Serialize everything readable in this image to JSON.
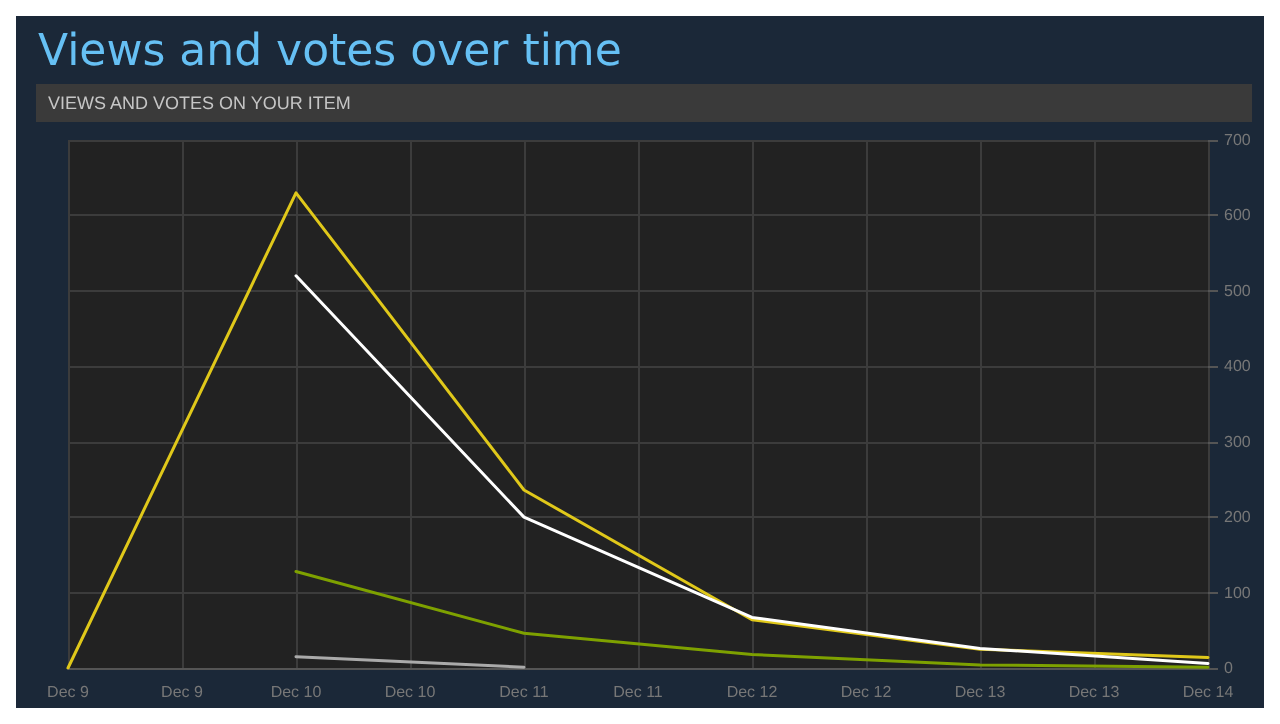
{
  "chart_data": {
    "type": "line",
    "title": "Views and votes over time",
    "subtitle": "VIEWS AND VOTES ON YOUR ITEM",
    "categories": [
      "Dec 9",
      "Dec 9",
      "Dec 10",
      "Dec 10",
      "Dec 11",
      "Dec 11",
      "Dec 12",
      "Dec 12",
      "Dec 13",
      "Dec 13",
      "Dec 14"
    ],
    "series": [
      {
        "color": "#e0c81a",
        "values": [
          0,
          null,
          630,
          null,
          236,
          null,
          64,
          null,
          25,
          null,
          14
        ]
      },
      {
        "color": "#ffffff",
        "values": [
          null,
          null,
          520,
          null,
          200,
          null,
          67,
          null,
          26,
          null,
          6
        ]
      },
      {
        "color": "#7ea100",
        "values": [
          null,
          null,
          128,
          null,
          46,
          null,
          18,
          null,
          4,
          null,
          1
        ]
      },
      {
        "color": "#aaaaaa",
        "values": [
          null,
          null,
          15,
          null,
          1,
          null,
          null,
          null,
          null,
          null,
          null
        ]
      }
    ],
    "ylim": [
      0,
      700
    ],
    "yticks": [
      0,
      100,
      200,
      300,
      400,
      500,
      600,
      700
    ],
    "grid": true,
    "marker": "none",
    "line_style": "solid"
  }
}
